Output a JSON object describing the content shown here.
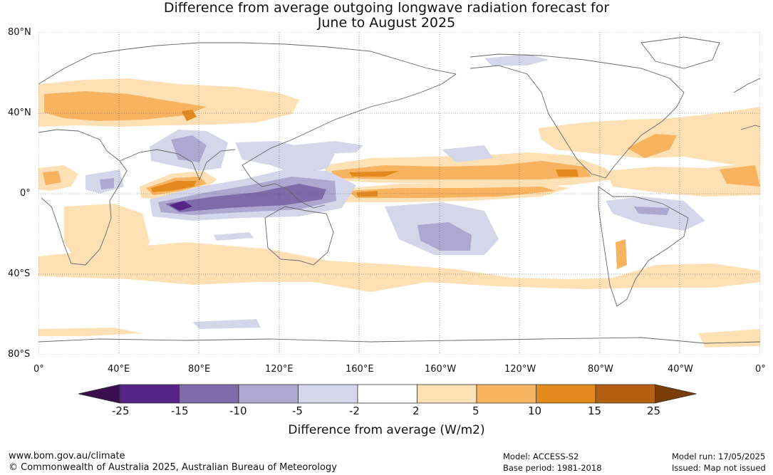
{
  "title_line1": "Difference from average outgoing longwave radiation forecast for",
  "title_line2": "June to August 2025",
  "lat_labels": [
    "80°N",
    "40°N",
    "0°",
    "40°S",
    "80°S"
  ],
  "lon_labels": [
    "0°",
    "40°E",
    "80°E",
    "120°E",
    "160°E",
    "160°W",
    "120°W",
    "80°W",
    "40°W",
    "0°"
  ],
  "colorbar": {
    "ticks": [
      "-25",
      "-15",
      "-10",
      "-5",
      "-2",
      "2",
      "5",
      "10",
      "15",
      "25"
    ],
    "colors": [
      "#3b0e4f",
      "#562487",
      "#7f6aaa",
      "#aea8d1",
      "#d6d6ea",
      "#ffffff",
      "#fde0b4",
      "#f8b361",
      "#e38a1e",
      "#b45f12",
      "#7a3d08"
    ],
    "units_label": "Difference from average (W/m2)"
  },
  "footer": {
    "website": "www.bom.gov.au/climate",
    "copyright": "© Commonwealth of Australia 2025, Australian Bureau of Meteorology",
    "model": "Model: ACCESS-S2",
    "base_period": "Base period: 1981-2018",
    "model_run": "Model run: 17/05/2025",
    "issued": "Issued: Map not issued"
  }
}
